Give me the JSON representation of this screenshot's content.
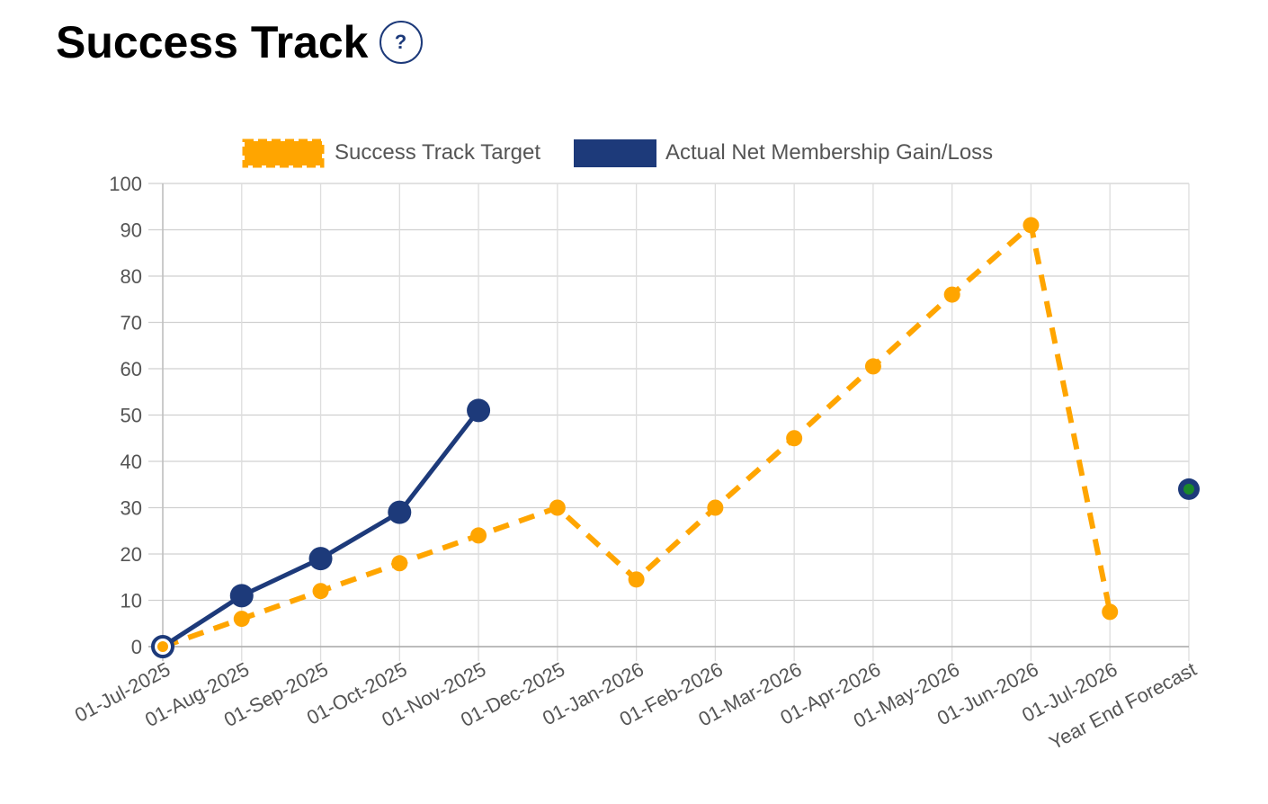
{
  "header": {
    "title": "Success Track",
    "help_label": "?"
  },
  "chart_data": {
    "type": "line",
    "categories": [
      "01-Jul-2025",
      "01-Aug-2025",
      "01-Sep-2025",
      "01-Oct-2025",
      "01-Nov-2025",
      "01-Dec-2025",
      "01-Jan-2026",
      "01-Feb-2026",
      "01-Mar-2026",
      "01-Apr-2026",
      "01-May-2026",
      "01-Jun-2026",
      "01-Jul-2026",
      "Year End Forecast"
    ],
    "series": [
      {
        "name": "Success Track Target",
        "style": "dashed",
        "color": "#ffa500",
        "values": [
          0,
          6,
          12,
          18,
          24,
          30,
          14.5,
          30,
          45,
          60.5,
          76,
          91,
          7.5,
          null
        ]
      },
      {
        "name": "Actual Net Membership Gain/Loss",
        "style": "solid",
        "color": "#1d3a7a",
        "values": [
          0,
          11,
          19,
          29,
          51,
          null,
          null,
          null,
          null,
          null,
          null,
          null,
          null,
          34
        ]
      }
    ],
    "forecast_marker_center_color": "#1b8a2a",
    "ylim": [
      0,
      100
    ],
    "yticks": [
      0,
      10,
      20,
      30,
      40,
      50,
      60,
      70,
      80,
      90,
      100
    ],
    "grid": true,
    "legend_position": "top",
    "title": "",
    "xlabel": "",
    "ylabel": ""
  }
}
